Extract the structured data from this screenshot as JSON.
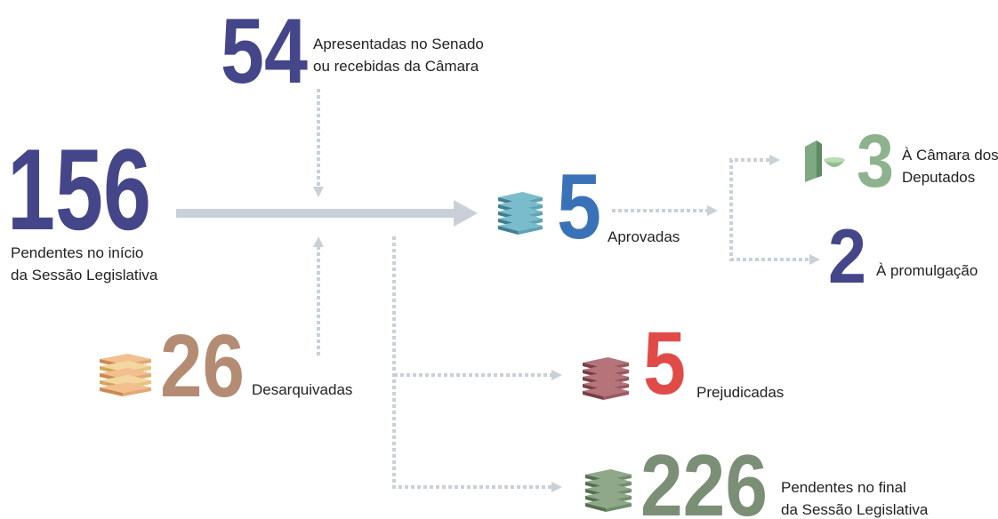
{
  "nodes": [
    {
      "id": "apresentadas",
      "value": 54,
      "label": [
        "Apresentadas no Senado",
        "ou recebidas da Câmara"
      ]
    },
    {
      "id": "pendentes-inicio",
      "value": 156,
      "label": [
        "Pendentes no início",
        "da Sessão Legislativa"
      ]
    },
    {
      "id": "aprovadas",
      "value": 5,
      "label": [
        "Aprovadas"
      ]
    },
    {
      "id": "camara",
      "value": 3,
      "label": [
        "À Câmara dos",
        "Deputados"
      ]
    },
    {
      "id": "promulgacao",
      "value": 2,
      "label": [
        "À promulgação"
      ]
    },
    {
      "id": "desarquivadas",
      "value": 26,
      "label": [
        "Desarquivadas"
      ]
    },
    {
      "id": "prejudicadas",
      "value": 5,
      "label": [
        "Prejudicadas"
      ]
    },
    {
      "id": "pendentes-final",
      "value": 226,
      "label": [
        "Pendentes no final",
        "da Sessão Legislativa"
      ]
    }
  ]
}
